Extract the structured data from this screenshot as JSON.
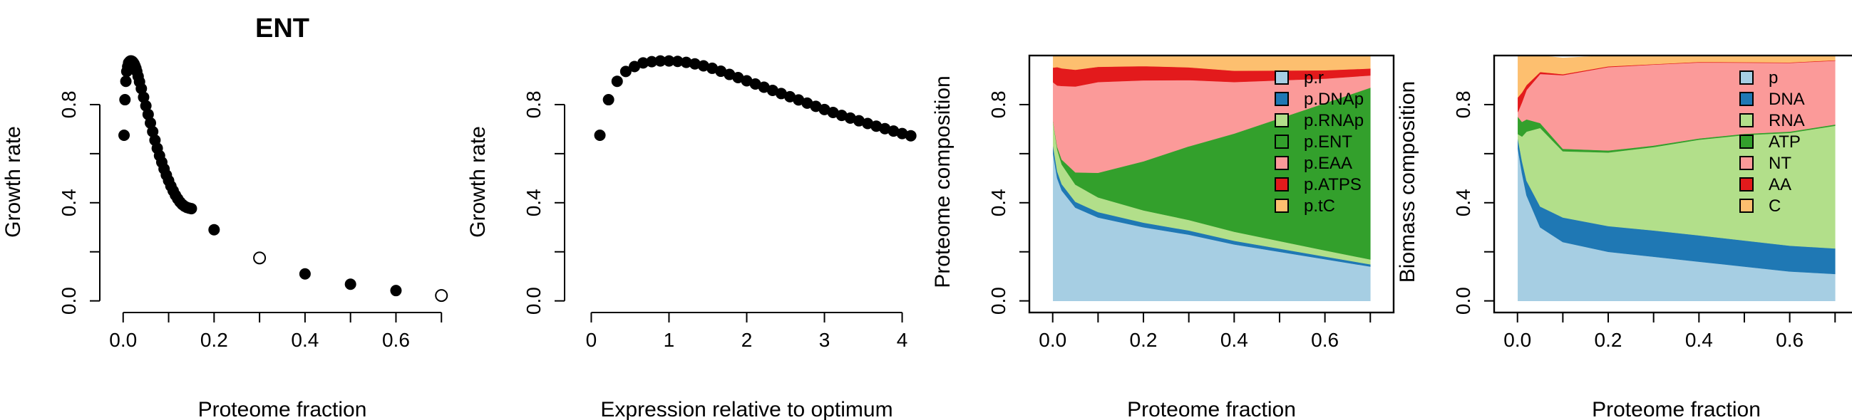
{
  "chart_data": [
    {
      "type": "scatter",
      "title": "ENT",
      "xlabel": "Proteome fraction",
      "ylabel": "Growth rate",
      "xlim": [
        -0.02,
        0.72
      ],
      "ylim": [
        -0.03,
        1.0
      ],
      "xticks": [
        0.0,
        0.1,
        0.2,
        0.3,
        0.4,
        0.5,
        0.6,
        0.7
      ],
      "xtick_labels": [
        "0.0",
        "",
        "0.2",
        "",
        "0.4",
        "",
        "0.6",
        ""
      ],
      "yticks": [
        0.0,
        0.2,
        0.4,
        0.6,
        0.8
      ],
      "ytick_labels": [
        "0.0",
        "",
        "0.4",
        "",
        "0.8"
      ],
      "points": [
        {
          "x": 0.002,
          "y": 0.675,
          "filled": true
        },
        {
          "x": 0.004,
          "y": 0.82,
          "filled": true
        },
        {
          "x": 0.006,
          "y": 0.895,
          "filled": true
        },
        {
          "x": 0.008,
          "y": 0.935,
          "filled": true
        },
        {
          "x": 0.01,
          "y": 0.955,
          "filled": true
        },
        {
          "x": 0.012,
          "y": 0.97,
          "filled": true
        },
        {
          "x": 0.014,
          "y": 0.975,
          "filled": true
        },
        {
          "x": 0.016,
          "y": 0.978,
          "filled": true
        },
        {
          "x": 0.018,
          "y": 0.978,
          "filled": true
        },
        {
          "x": 0.02,
          "y": 0.976,
          "filled": true
        },
        {
          "x": 0.022,
          "y": 0.972,
          "filled": true
        },
        {
          "x": 0.024,
          "y": 0.966,
          "filled": true
        },
        {
          "x": 0.026,
          "y": 0.958,
          "filled": true
        },
        {
          "x": 0.028,
          "y": 0.948,
          "filled": true
        },
        {
          "x": 0.03,
          "y": 0.935,
          "filled": true
        },
        {
          "x": 0.033,
          "y": 0.915,
          "filled": true
        },
        {
          "x": 0.036,
          "y": 0.893,
          "filled": true
        },
        {
          "x": 0.04,
          "y": 0.865,
          "filled": true
        },
        {
          "x": 0.045,
          "y": 0.83,
          "filled": true
        },
        {
          "x": 0.05,
          "y": 0.795,
          "filled": true
        },
        {
          "x": 0.055,
          "y": 0.76,
          "filled": true
        },
        {
          "x": 0.06,
          "y": 0.725,
          "filled": true
        },
        {
          "x": 0.065,
          "y": 0.69,
          "filled": true
        },
        {
          "x": 0.07,
          "y": 0.655,
          "filled": true
        },
        {
          "x": 0.075,
          "y": 0.622,
          "filled": true
        },
        {
          "x": 0.08,
          "y": 0.592,
          "filled": true
        },
        {
          "x": 0.085,
          "y": 0.565,
          "filled": true
        },
        {
          "x": 0.09,
          "y": 0.538,
          "filled": true
        },
        {
          "x": 0.095,
          "y": 0.513,
          "filled": true
        },
        {
          "x": 0.1,
          "y": 0.49,
          "filled": true
        },
        {
          "x": 0.105,
          "y": 0.468,
          "filled": true
        },
        {
          "x": 0.11,
          "y": 0.449,
          "filled": true
        },
        {
          "x": 0.115,
          "y": 0.431,
          "filled": true
        },
        {
          "x": 0.12,
          "y": 0.416,
          "filled": true
        },
        {
          "x": 0.125,
          "y": 0.403,
          "filled": true
        },
        {
          "x": 0.13,
          "y": 0.393,
          "filled": true
        },
        {
          "x": 0.135,
          "y": 0.386,
          "filled": true
        },
        {
          "x": 0.14,
          "y": 0.381,
          "filled": true
        },
        {
          "x": 0.145,
          "y": 0.378,
          "filled": true
        },
        {
          "x": 0.15,
          "y": 0.376,
          "filled": true
        },
        {
          "x": 0.2,
          "y": 0.29,
          "filled": true
        },
        {
          "x": 0.3,
          "y": 0.175,
          "filled": false
        },
        {
          "x": 0.4,
          "y": 0.11,
          "filled": true
        },
        {
          "x": 0.5,
          "y": 0.068,
          "filled": true
        },
        {
          "x": 0.6,
          "y": 0.042,
          "filled": true
        },
        {
          "x": 0.7,
          "y": 0.022,
          "filled": false
        }
      ]
    },
    {
      "type": "scatter",
      "xlabel": "Expression relative to optimum",
      "ylabel": "Growth rate",
      "xlim": [
        -0.16,
        4.16
      ],
      "ylim": [
        -0.03,
        1.0
      ],
      "xticks": [
        0,
        1,
        2,
        3,
        4
      ],
      "xtick_labels": [
        "0",
        "1",
        "2",
        "3",
        "4"
      ],
      "yticks": [
        0.0,
        0.2,
        0.4,
        0.6,
        0.8
      ],
      "ytick_labels": [
        "0.0",
        "",
        "0.4",
        "",
        "0.8"
      ],
      "points": [
        {
          "x": 0.111,
          "y": 0.675
        },
        {
          "x": 0.222,
          "y": 0.82
        },
        {
          "x": 0.333,
          "y": 0.895
        },
        {
          "x": 0.444,
          "y": 0.935
        },
        {
          "x": 0.556,
          "y": 0.955
        },
        {
          "x": 0.667,
          "y": 0.97
        },
        {
          "x": 0.778,
          "y": 0.975
        },
        {
          "x": 0.889,
          "y": 0.978
        },
        {
          "x": 1.0,
          "y": 0.978
        },
        {
          "x": 1.111,
          "y": 0.976
        },
        {
          "x": 1.222,
          "y": 0.972
        },
        {
          "x": 1.333,
          "y": 0.966
        },
        {
          "x": 1.444,
          "y": 0.958
        },
        {
          "x": 1.556,
          "y": 0.948
        },
        {
          "x": 1.667,
          "y": 0.936
        },
        {
          "x": 1.778,
          "y": 0.923
        },
        {
          "x": 1.889,
          "y": 0.91
        },
        {
          "x": 2.0,
          "y": 0.897
        },
        {
          "x": 2.111,
          "y": 0.884
        },
        {
          "x": 2.222,
          "y": 0.871
        },
        {
          "x": 2.333,
          "y": 0.858
        },
        {
          "x": 2.444,
          "y": 0.845
        },
        {
          "x": 2.556,
          "y": 0.832
        },
        {
          "x": 2.667,
          "y": 0.819
        },
        {
          "x": 2.778,
          "y": 0.806
        },
        {
          "x": 2.889,
          "y": 0.793
        },
        {
          "x": 3.0,
          "y": 0.78
        },
        {
          "x": 3.111,
          "y": 0.768
        },
        {
          "x": 3.222,
          "y": 0.756
        },
        {
          "x": 3.333,
          "y": 0.745
        },
        {
          "x": 3.444,
          "y": 0.734
        },
        {
          "x": 3.556,
          "y": 0.723
        },
        {
          "x": 3.667,
          "y": 0.712
        },
        {
          "x": 3.778,
          "y": 0.702
        },
        {
          "x": 3.889,
          "y": 0.692
        },
        {
          "x": 4.0,
          "y": 0.682
        },
        {
          "x": 4.111,
          "y": 0.673
        }
      ]
    },
    {
      "type": "area",
      "stacked": true,
      "xlabel": "Proteome fraction",
      "ylabel": "Proteome composition",
      "xlim": [
        -0.02,
        0.72
      ],
      "ylim": [
        -0.03,
        1.0
      ],
      "xticks": [
        0.0,
        0.1,
        0.2,
        0.3,
        0.4,
        0.5,
        0.6,
        0.7
      ],
      "xtick_labels": [
        "0.0",
        "",
        "0.2",
        "",
        "0.4",
        "",
        "0.6",
        ""
      ],
      "yticks": [
        0.0,
        0.2,
        0.4,
        0.6,
        0.8
      ],
      "ytick_labels": [
        "0.0",
        "",
        "0.4",
        "",
        "0.8"
      ],
      "legend_position": "top-right",
      "x": [
        0.001,
        0.01,
        0.02,
        0.05,
        0.1,
        0.2,
        0.3,
        0.4,
        0.5,
        0.6,
        0.7
      ],
      "series": [
        {
          "name": "p.r",
          "color": "#a6cee3",
          "values": [
            0.6,
            0.5,
            0.45,
            0.38,
            0.34,
            0.3,
            0.27,
            0.23,
            0.2,
            0.17,
            0.14
          ]
        },
        {
          "name": "p.DNAp",
          "color": "#1f78b4",
          "values": [
            0.03,
            0.028,
            0.026,
            0.024,
            0.022,
            0.019,
            0.017,
            0.015,
            0.013,
            0.011,
            0.009
          ]
        },
        {
          "name": "p.RNAp",
          "color": "#b2df8a",
          "values": [
            0.1,
            0.09,
            0.08,
            0.07,
            0.06,
            0.05,
            0.043,
            0.037,
            0.031,
            0.025,
            0.02
          ]
        },
        {
          "name": "p.ENT",
          "color": "#33a02c",
          "values": [
            0.001,
            0.01,
            0.02,
            0.05,
            0.1,
            0.2,
            0.3,
            0.4,
            0.5,
            0.6,
            0.7
          ]
        },
        {
          "name": "p.EAA",
          "color": "#fb9a99",
          "values": [
            0.16,
            0.25,
            0.3,
            0.35,
            0.37,
            0.33,
            0.27,
            0.21,
            0.155,
            0.1,
            0.05
          ]
        },
        {
          "name": "p.ATPS",
          "color": "#e31a1c",
          "values": [
            0.06,
            0.075,
            0.072,
            0.068,
            0.062,
            0.058,
            0.052,
            0.046,
            0.04,
            0.034,
            0.028
          ]
        },
        {
          "name": "p.tC",
          "color": "#fdbf6f",
          "values": [
            0.049,
            0.047,
            0.052,
            0.058,
            0.046,
            0.043,
            0.048,
            0.062,
            0.061,
            0.06,
            0.053
          ]
        }
      ]
    },
    {
      "type": "area",
      "stacked": true,
      "xlabel": "Proteome fraction",
      "ylabel": "Biomass composition",
      "xlim": [
        -0.02,
        0.72
      ],
      "ylim": [
        -0.03,
        1.0
      ],
      "xticks": [
        0.0,
        0.1,
        0.2,
        0.3,
        0.4,
        0.5,
        0.6,
        0.7
      ],
      "xtick_labels": [
        "0.0",
        "",
        "0.2",
        "",
        "0.4",
        "",
        "0.6",
        ""
      ],
      "yticks": [
        0.0,
        0.2,
        0.4,
        0.6,
        0.8
      ],
      "ytick_labels": [
        "0.0",
        "",
        "0.4",
        "",
        "0.8"
      ],
      "legend_position": "top-right",
      "x": [
        0.001,
        0.01,
        0.02,
        0.05,
        0.1,
        0.2,
        0.3,
        0.4,
        0.5,
        0.6,
        0.7
      ],
      "series": [
        {
          "name": "p",
          "color": "#a6cee3",
          "values": [
            0.62,
            0.52,
            0.43,
            0.3,
            0.24,
            0.2,
            0.18,
            0.16,
            0.14,
            0.12,
            0.11
          ]
        },
        {
          "name": "DNA",
          "color": "#1f78b4",
          "values": [
            0.04,
            0.05,
            0.06,
            0.085,
            0.1,
            0.105,
            0.107,
            0.107,
            0.106,
            0.105,
            0.104
          ]
        },
        {
          "name": "RNA",
          "color": "#b2df8a",
          "values": [
            0.02,
            0.1,
            0.2,
            0.32,
            0.27,
            0.3,
            0.34,
            0.39,
            0.43,
            0.46,
            0.5
          ]
        },
        {
          "name": "ATP",
          "color": "#33a02c",
          "values": [
            0.07,
            0.06,
            0.05,
            0.02,
            0.01,
            0.008,
            0.006,
            0.005,
            0.005,
            0.005,
            0.005
          ]
        },
        {
          "name": "NT",
          "color": "#fb9a99",
          "values": [
            0.02,
            0.08,
            0.12,
            0.2,
            0.3,
            0.34,
            0.33,
            0.31,
            0.29,
            0.28,
            0.26
          ]
        },
        {
          "name": "AA",
          "color": "#e31a1c",
          "values": [
            0.06,
            0.04,
            0.02,
            0.008,
            0.004,
            0.003,
            0.002,
            0.002,
            0.002,
            0.002,
            0.002
          ]
        },
        {
          "name": "C",
          "color": "#fdbf6f",
          "values": [
            0.17,
            0.15,
            0.12,
            0.067,
            0.066,
            0.044,
            0.035,
            0.026,
            0.027,
            0.028,
            0.019
          ]
        }
      ]
    }
  ]
}
